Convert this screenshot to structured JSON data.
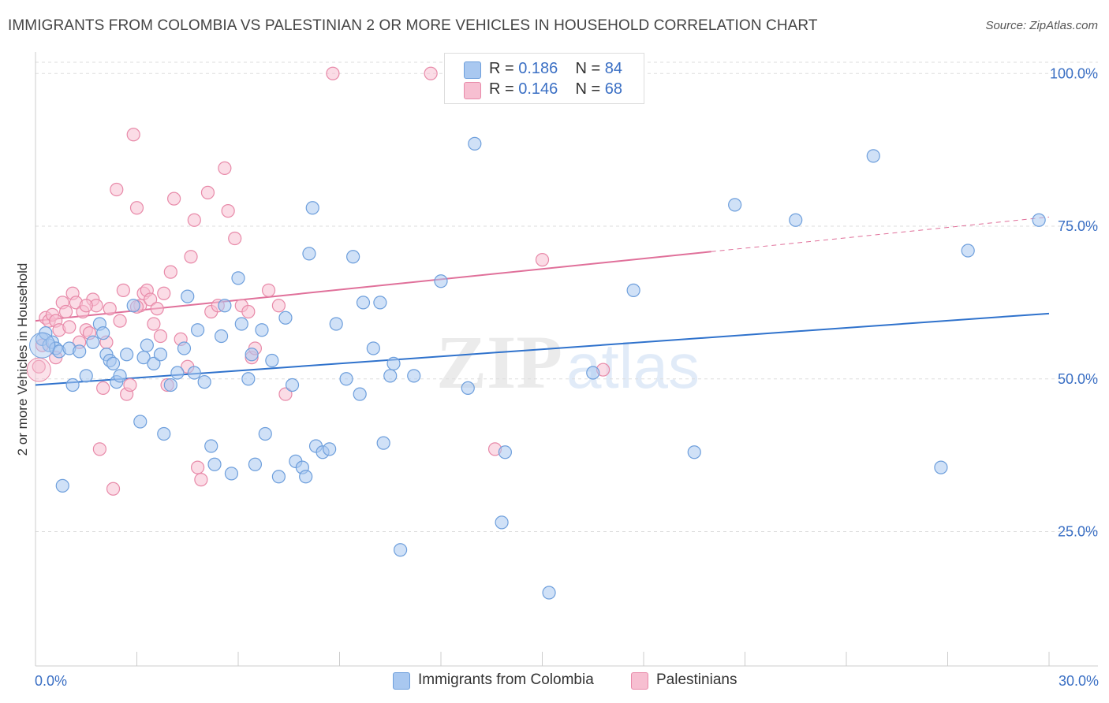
{
  "header": {
    "title": "IMMIGRANTS FROM COLOMBIA VS PALESTINIAN 2 OR MORE VEHICLES IN HOUSEHOLD CORRELATION CHART",
    "source": "Source: ZipAtlas.com"
  },
  "legend": {
    "rows": [
      {
        "r_label": "R =",
        "r_value": "0.186",
        "n_label": "N =",
        "n_value": "84"
      },
      {
        "r_label": "R =",
        "r_value": "0.146",
        "n_label": "N =",
        "n_value": "68"
      }
    ]
  },
  "bottom_legend": {
    "colombia": "Immigrants from Colombia",
    "palestinians": "Palestinians"
  },
  "watermark": {
    "zip": "ZIP",
    "atlas": "atlas"
  },
  "colors": {
    "blue_fill": "#a9c8f0",
    "blue_stroke": "#6e9fdc",
    "blue_line": "#2f72cc",
    "pink_fill": "#f7bfd1",
    "pink_stroke": "#e88aa9",
    "pink_line": "#e0709a",
    "axis_text": "#3a6fc4",
    "grid": "#dddddd"
  },
  "chart_data": {
    "type": "scatter",
    "title": "IMMIGRANTS FROM COLOMBIA VS PALESTINIAN 2 OR MORE VEHICLES IN HOUSEHOLD CORRELATION CHART",
    "xlabel": "",
    "ylabel": "2 or more Vehicles in Household",
    "xlim": [
      0,
      30
    ],
    "ylim": [
      3,
      103
    ],
    "x_tick_labels": [
      "0.0%",
      "30.0%"
    ],
    "y_ticks": [
      25,
      50,
      75,
      100
    ],
    "y_tick_labels": [
      "25.0%",
      "50.0%",
      "75.0%",
      "100.0%"
    ],
    "legend_position": "top-center",
    "series": [
      {
        "name": "Immigrants from Colombia",
        "r": 0.186,
        "n": 84,
        "trend": {
          "x0": 0,
          "y0": 49.0,
          "x1": 30,
          "y1": 60.7,
          "solid_until": 30
        },
        "points": [
          [
            0.2,
            56.5
          ],
          [
            0.3,
            57.5
          ],
          [
            0.4,
            55.5
          ],
          [
            0.5,
            56
          ],
          [
            0.6,
            55
          ],
          [
            0.7,
            54.5
          ],
          [
            0.8,
            32.5
          ],
          [
            1.0,
            55
          ],
          [
            1.1,
            49
          ],
          [
            1.3,
            54.5
          ],
          [
            1.5,
            50.5
          ],
          [
            1.7,
            56
          ],
          [
            1.9,
            59
          ],
          [
            2.0,
            57.5
          ],
          [
            2.1,
            54
          ],
          [
            2.2,
            53
          ],
          [
            2.3,
            52.5
          ],
          [
            2.4,
            49.5
          ],
          [
            2.5,
            50.5
          ],
          [
            2.7,
            54
          ],
          [
            2.9,
            62
          ],
          [
            3.1,
            43
          ],
          [
            3.2,
            53.5
          ],
          [
            3.3,
            55.5
          ],
          [
            3.5,
            52.5
          ],
          [
            3.7,
            54
          ],
          [
            3.8,
            41
          ],
          [
            4.0,
            49
          ],
          [
            4.2,
            51
          ],
          [
            4.4,
            55
          ],
          [
            4.5,
            63.5
          ],
          [
            4.7,
            51
          ],
          [
            4.8,
            58
          ],
          [
            5.0,
            49.5
          ],
          [
            5.2,
            39
          ],
          [
            5.3,
            36
          ],
          [
            5.5,
            57
          ],
          [
            5.6,
            62
          ],
          [
            5.8,
            34.5
          ],
          [
            6.0,
            66.5
          ],
          [
            6.1,
            59
          ],
          [
            6.3,
            50
          ],
          [
            6.4,
            54
          ],
          [
            6.5,
            36
          ],
          [
            6.7,
            58
          ],
          [
            6.8,
            41
          ],
          [
            7.0,
            53
          ],
          [
            7.2,
            34
          ],
          [
            7.4,
            60
          ],
          [
            7.6,
            49
          ],
          [
            7.7,
            36.5
          ],
          [
            7.9,
            35.5
          ],
          [
            8.0,
            34
          ],
          [
            8.1,
            70.5
          ],
          [
            8.2,
            78
          ],
          [
            8.3,
            39
          ],
          [
            8.5,
            38
          ],
          [
            8.7,
            38.5
          ],
          [
            8.9,
            59
          ],
          [
            9.2,
            50
          ],
          [
            9.4,
            70
          ],
          [
            9.6,
            47.5
          ],
          [
            9.7,
            62.5
          ],
          [
            10.0,
            55
          ],
          [
            10.2,
            62.5
          ],
          [
            10.3,
            39.5
          ],
          [
            10.5,
            50.5
          ],
          [
            10.6,
            52.5
          ],
          [
            10.8,
            22
          ],
          [
            11.2,
            50.5
          ],
          [
            12.0,
            66
          ],
          [
            12.8,
            48.5
          ],
          [
            13.0,
            88.5
          ],
          [
            13.8,
            26.5
          ],
          [
            13.9,
            38
          ],
          [
            15.2,
            15
          ],
          [
            16.5,
            51
          ],
          [
            17.7,
            64.5
          ],
          [
            19.5,
            38
          ],
          [
            20.7,
            78.5
          ],
          [
            22.5,
            76
          ],
          [
            24.8,
            86.5
          ],
          [
            26.8,
            35.5
          ],
          [
            27.6,
            71
          ],
          [
            29.7,
            76
          ]
        ]
      },
      {
        "name": "Palestinians",
        "r": 0.146,
        "n": 68,
        "trend": {
          "x0": 0,
          "y0": 59.5,
          "x1": 30,
          "y1": 76.5,
          "solid_until": 20.0
        },
        "points": [
          [
            0.1,
            52
          ],
          [
            0.2,
            55.5
          ],
          [
            0.3,
            60
          ],
          [
            0.4,
            59.5
          ],
          [
            0.5,
            60.5
          ],
          [
            0.6,
            59.5
          ],
          [
            0.7,
            58
          ],
          [
            0.8,
            62.5
          ],
          [
            0.9,
            61
          ],
          [
            1.0,
            58.5
          ],
          [
            1.1,
            64
          ],
          [
            1.2,
            62.5
          ],
          [
            1.3,
            56
          ],
          [
            1.4,
            61
          ],
          [
            1.5,
            58
          ],
          [
            1.6,
            57.5
          ],
          [
            1.7,
            63
          ],
          [
            1.8,
            62
          ],
          [
            1.9,
            38.5
          ],
          [
            2.0,
            48.5
          ],
          [
            2.1,
            56
          ],
          [
            2.2,
            61.5
          ],
          [
            2.3,
            32
          ],
          [
            2.4,
            81
          ],
          [
            2.5,
            59.5
          ],
          [
            2.6,
            64.5
          ],
          [
            2.7,
            47.5
          ],
          [
            2.8,
            49
          ],
          [
            2.9,
            90
          ],
          [
            3.0,
            78
          ],
          [
            3.1,
            62
          ],
          [
            3.2,
            64
          ],
          [
            3.3,
            64.5
          ],
          [
            3.4,
            63
          ],
          [
            3.5,
            59
          ],
          [
            3.6,
            61.5
          ],
          [
            3.7,
            57
          ],
          [
            3.8,
            64
          ],
          [
            3.9,
            49
          ],
          [
            4.0,
            67.5
          ],
          [
            4.1,
            79.5
          ],
          [
            4.3,
            56.5
          ],
          [
            4.5,
            52
          ],
          [
            4.6,
            70
          ],
          [
            4.7,
            76
          ],
          [
            4.8,
            35.5
          ],
          [
            4.9,
            33.5
          ],
          [
            5.1,
            80.5
          ],
          [
            5.2,
            61
          ],
          [
            5.4,
            62
          ],
          [
            5.6,
            84.5
          ],
          [
            5.7,
            77.5
          ],
          [
            5.9,
            73
          ],
          [
            6.1,
            62
          ],
          [
            6.3,
            61
          ],
          [
            6.4,
            53.5
          ],
          [
            6.5,
            55
          ],
          [
            6.9,
            64.5
          ],
          [
            7.2,
            62
          ],
          [
            7.4,
            47.5
          ],
          [
            8.8,
            100
          ],
          [
            11.7,
            100
          ],
          [
            13.6,
            38.5
          ],
          [
            15.0,
            69.5
          ],
          [
            16.8,
            51.5
          ],
          [
            3.0,
            61.8
          ],
          [
            1.5,
            62
          ],
          [
            0.6,
            53.5
          ]
        ]
      }
    ]
  }
}
